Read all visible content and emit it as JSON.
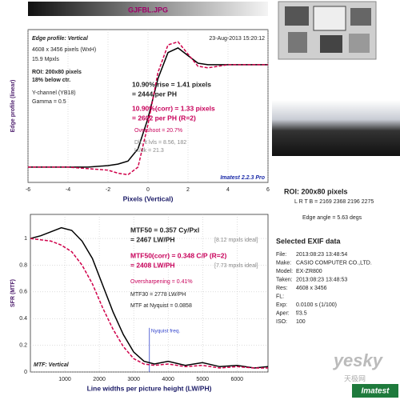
{
  "header": {
    "title": "GJFBL.JPG"
  },
  "chart_data": [
    {
      "type": "line",
      "title": "Edge profile: Vertical",
      "x_label": "Pixels (Vertical)",
      "y_label": "Edge profile (linear)",
      "x": [
        -6,
        -5,
        -4,
        -3,
        -2,
        -1.5,
        -1,
        -0.5,
        0,
        0.5,
        1,
        1.5,
        2,
        2.5,
        3,
        4,
        5,
        6
      ],
      "series": [
        {
          "color": "#000000",
          "style": "solid",
          "values": [
            0.1,
            0.1,
            0.1,
            0.1,
            0.11,
            0.12,
            0.14,
            0.22,
            0.42,
            0.68,
            0.85,
            0.88,
            0.83,
            0.78,
            0.77,
            0.77,
            0.77,
            0.77
          ]
        },
        {
          "color": "#d0004a",
          "style": "dashed",
          "values": [
            0.1,
            0.1,
            0.1,
            0.09,
            0.08,
            0.06,
            0.05,
            0.1,
            0.38,
            0.72,
            0.9,
            0.92,
            0.84,
            0.76,
            0.75,
            0.77,
            0.77,
            0.77
          ]
        }
      ],
      "xlim": [
        -6,
        6
      ],
      "xticks": [
        -6,
        -4,
        -2,
        0,
        2,
        4,
        6
      ],
      "ylim": [
        0,
        1
      ],
      "grid": true,
      "annotations": [
        "23-Aug-2013 15:20:12",
        "4608 x 3456 pixels (WxH)",
        "15.9 Mpxls",
        "ROI: 200x80 pixels",
        "18% below ctr.",
        "Y-channel (YB18)",
        "Gamma = 0.5",
        "10.90% rise = 1.41 pixels",
        "= 2444 per PH",
        "10.90%(corr) = 1.33 pixels",
        "= 2602 per PH  (R=2)",
        "Overshoot = 20.7%",
        "Dk, lt lvls = 8.56, 182",
        "Lt/dk = 21.3",
        "Imatest 2.2.3 Pro"
      ]
    },
    {
      "type": "line",
      "title": "MTF: Vertical",
      "x_label": "Line widths per picture height (LW/PH)",
      "y_label": "SFR (MTF)",
      "x": [
        0,
        300,
        600,
        900,
        1200,
        1500,
        1800,
        2100,
        2400,
        2700,
        3000,
        3300,
        3600,
        4000,
        4500,
        5000,
        5500,
        6000,
        6500,
        6900
      ],
      "series": [
        {
          "color": "#000000",
          "style": "solid",
          "values": [
            1.0,
            1.02,
            1.05,
            1.08,
            1.06,
            0.98,
            0.85,
            0.65,
            0.45,
            0.28,
            0.15,
            0.08,
            0.06,
            0.08,
            0.05,
            0.07,
            0.04,
            0.05,
            0.03,
            0.04
          ]
        },
        {
          "color": "#d0004a",
          "style": "dashed",
          "values": [
            1.0,
            0.99,
            0.98,
            0.95,
            0.9,
            0.8,
            0.66,
            0.48,
            0.32,
            0.19,
            0.1,
            0.06,
            0.05,
            0.06,
            0.04,
            0.05,
            0.03,
            0.04,
            0.03,
            0.03
          ]
        }
      ],
      "xlim": [
        0,
        6900
      ],
      "xticks": [
        1000,
        2000,
        3000,
        4000,
        5000,
        6000
      ],
      "ylim": [
        0,
        1.18
      ],
      "yticks": [
        0,
        0.2,
        0.4,
        0.6,
        0.8,
        1
      ],
      "grid": true,
      "vline": {
        "value": 3456,
        "label": "Nyquist freq.",
        "color": "#3344cc"
      },
      "annotations": [
        "MTF50 = 0.357 Cy/Pxl",
        "= 2467 LW/PH",
        "[8.12 mpxls ideal]",
        "MTF50(corr) = 0.348 C/P  (R=2)",
        "= 2408 LW/PH",
        "[7.73 mpxls ideal]",
        "Oversharpening = 0.41%",
        "MTF30 = 2778 LW/PH",
        "MTF at Nyquist = 0.0858"
      ]
    }
  ],
  "roi": {
    "title": "ROI: 200x80 pixels",
    "lrtb": "L R T B = 2169 2368  2196 2275",
    "edge_angle": "Edge angle = 5.63 degs"
  },
  "exif": {
    "title": "Selected EXIF data",
    "rows": [
      [
        "File:",
        "2013:08:23 13:48:54"
      ],
      [
        "Make:",
        "CASIO COMPUTER CO.,LTD."
      ],
      [
        "Model:",
        "EX-ZR800"
      ],
      [
        "Taken:",
        "2013:08:23 13:48:53"
      ],
      [
        "Res:",
        "4608 x 3456"
      ],
      [
        "FL:"
      ],
      [
        "Exp:",
        "0.0100 s  (1/100)"
      ],
      [
        "Aper:",
        "f/3.5"
      ],
      [
        "ISO:",
        "100"
      ]
    ]
  },
  "watermark": {
    "site": "yesky",
    "site_cn": "天极网",
    "logo": "Imatest"
  }
}
